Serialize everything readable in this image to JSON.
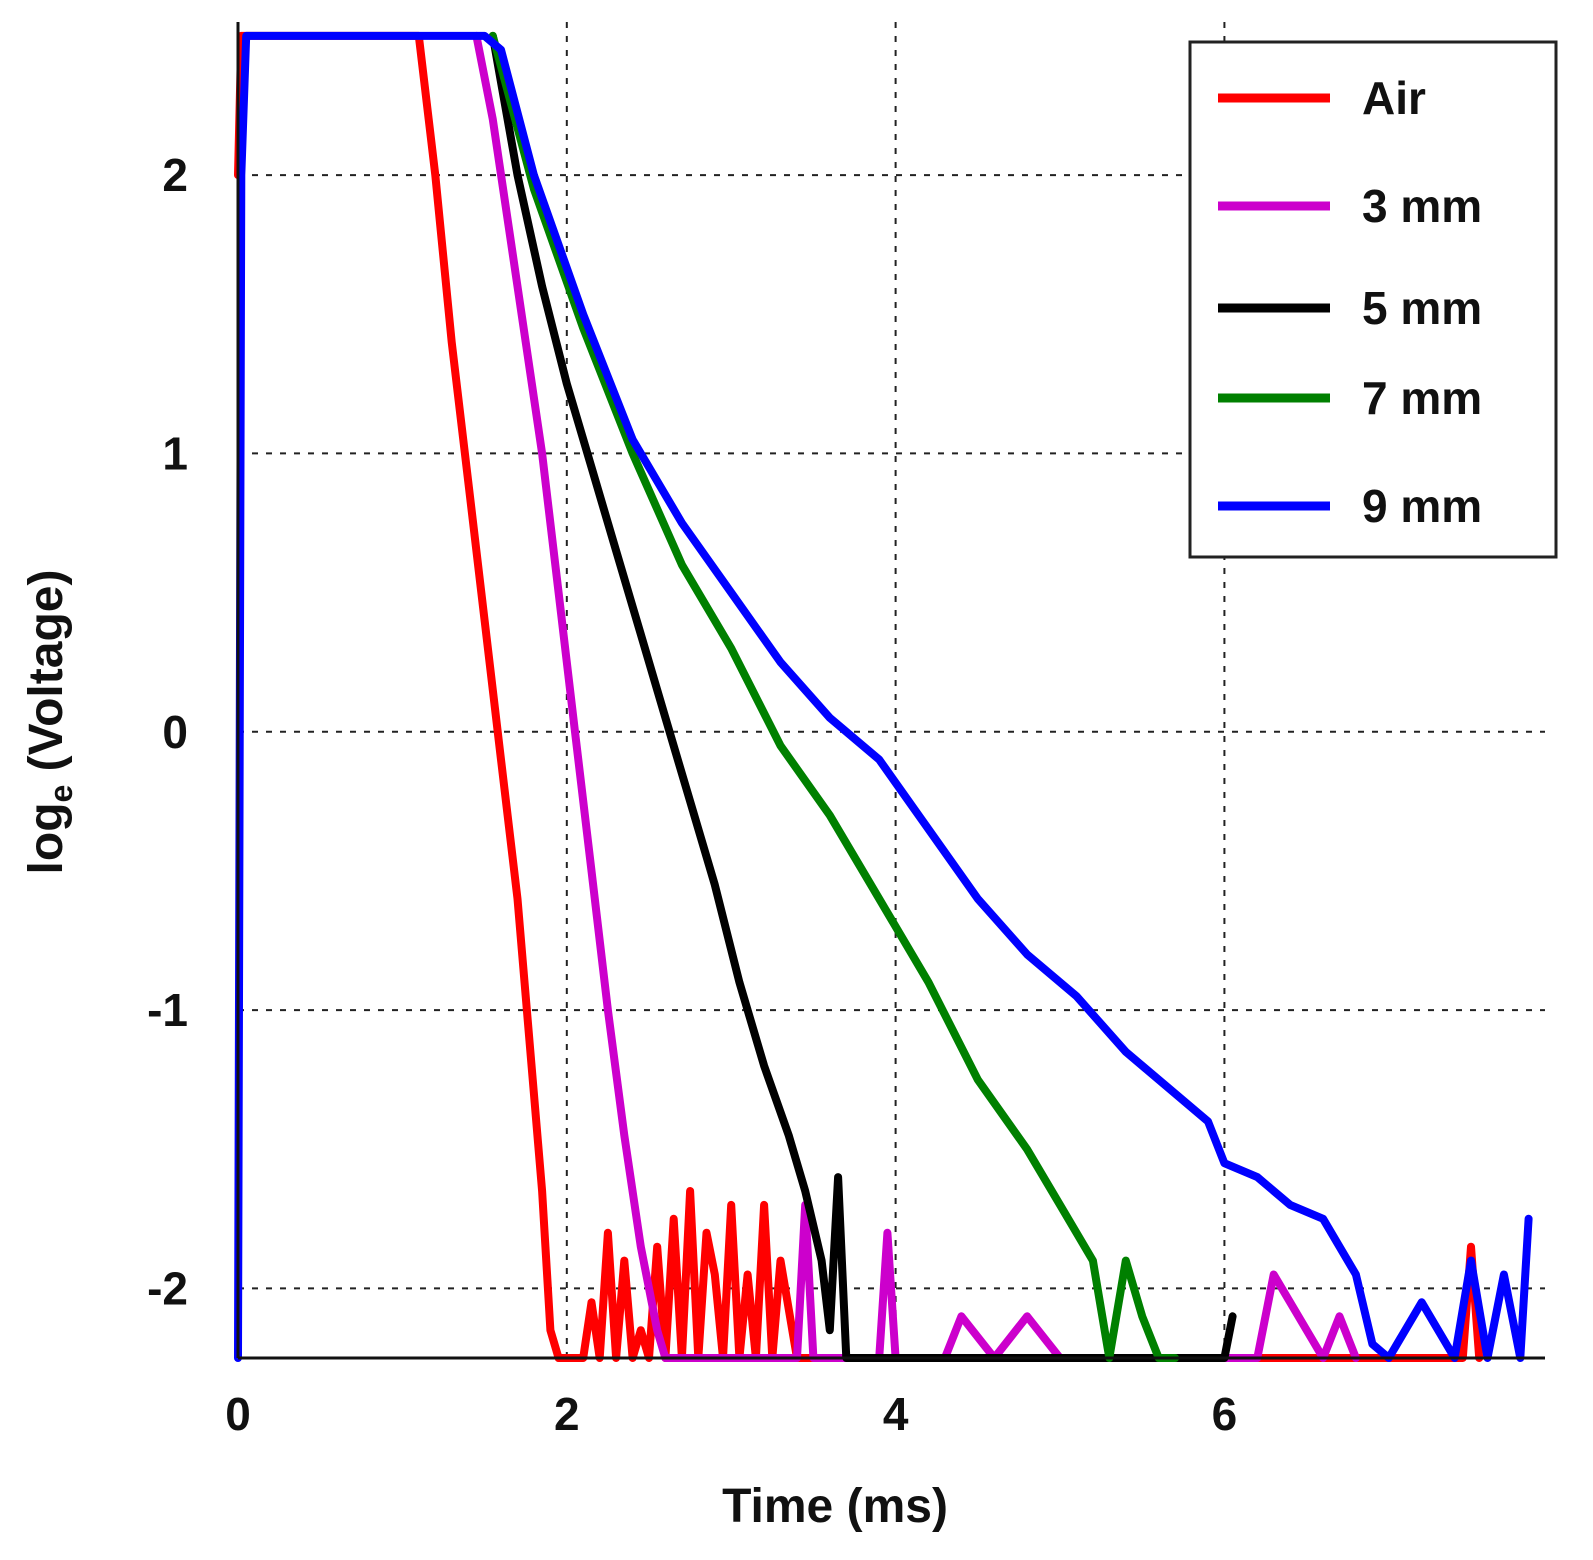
{
  "chart_data": {
    "type": "line",
    "title": "",
    "xlabel": "Time (ms)",
    "ylabel_main": "log",
    "ylabel_sub": "e",
    "ylabel_rest": " (Voltage)",
    "xlim": [
      0,
      7.95
    ],
    "ylim": [
      -2.25,
      2.55
    ],
    "xticks": [
      0,
      2,
      4,
      6
    ],
    "xtick_labels": [
      "0",
      "2",
      "4",
      "6"
    ],
    "yticks": [
      2,
      1,
      0,
      -1,
      -2
    ],
    "ytick_labels": [
      "2",
      "1",
      "0",
      "-1",
      "-2"
    ],
    "grid": true,
    "legend_position": "top-right",
    "series": [
      {
        "name": "Air",
        "color": "#ff0000",
        "x": [
          0,
          0.02,
          0.05,
          1.1,
          1.2,
          1.3,
          1.4,
          1.5,
          1.6,
          1.7,
          1.8,
          1.85,
          1.9,
          1.95,
          2.0,
          2.1,
          2.15,
          2.2,
          2.25,
          2.3,
          2.35,
          2.4,
          2.45,
          2.5,
          2.55,
          2.6,
          2.65,
          2.7,
          2.75,
          2.8,
          2.85,
          2.9,
          2.95,
          3.0,
          3.05,
          3.1,
          3.15,
          3.2,
          3.25,
          3.3,
          3.4,
          3.5,
          4.5,
          5.0,
          6.0,
          7.0,
          7.45,
          7.5,
          7.55
        ],
        "y": [
          2.0,
          2.5,
          2.5,
          2.5,
          2.0,
          1.4,
          0.9,
          0.4,
          -0.1,
          -0.6,
          -1.3,
          -1.65,
          -2.15,
          -2.25,
          -2.25,
          -2.25,
          -2.05,
          -2.25,
          -1.8,
          -2.25,
          -1.9,
          -2.25,
          -2.15,
          -2.25,
          -1.85,
          -2.25,
          -1.75,
          -2.25,
          -1.65,
          -2.25,
          -1.8,
          -1.95,
          -2.25,
          -1.7,
          -2.25,
          -1.95,
          -2.25,
          -1.7,
          -2.25,
          -1.9,
          -2.25,
          -2.25,
          -2.25,
          -2.25,
          -2.25,
          -2.25,
          -2.25,
          -1.85,
          -2.25
        ]
      },
      {
        "name": "3 mm",
        "color": "#cc00cc",
        "x": [
          1.45,
          1.55,
          1.65,
          1.75,
          1.85,
          1.95,
          2.05,
          2.15,
          2.25,
          2.35,
          2.45,
          2.55,
          2.6,
          2.7,
          3.4,
          3.45,
          3.5,
          3.6,
          3.9,
          3.95,
          4.0,
          4.1,
          4.3,
          4.4,
          4.6,
          4.8,
          5.0,
          5.2,
          5.8,
          6.2,
          6.3,
          6.6,
          6.7,
          6.8
        ],
        "y": [
          2.5,
          2.2,
          1.8,
          1.4,
          1.0,
          0.5,
          0.0,
          -0.5,
          -1.0,
          -1.45,
          -1.85,
          -2.15,
          -2.25,
          -2.25,
          -2.25,
          -1.7,
          -2.25,
          -2.25,
          -2.25,
          -1.8,
          -2.25,
          -2.25,
          -2.25,
          -2.1,
          -2.25,
          -2.1,
          -2.25,
          -2.25,
          -2.25,
          -2.25,
          -1.95,
          -2.25,
          -2.1,
          -2.25
        ]
      },
      {
        "name": "5 mm",
        "color": "#000000",
        "x": [
          1.55,
          1.7,
          1.85,
          2.0,
          2.15,
          2.3,
          2.45,
          2.6,
          2.75,
          2.9,
          3.05,
          3.2,
          3.35,
          3.45,
          3.55,
          3.6,
          3.65,
          3.7,
          3.75,
          3.8,
          3.9,
          6.0,
          6.05
        ],
        "y": [
          2.5,
          2.0,
          1.6,
          1.25,
          0.95,
          0.65,
          0.35,
          0.05,
          -0.25,
          -0.55,
          -0.9,
          -1.2,
          -1.45,
          -1.65,
          -1.9,
          -2.15,
          -1.6,
          -2.25,
          -2.25,
          -2.25,
          -2.25,
          -2.25,
          -2.1
        ]
      },
      {
        "name": "7 mm",
        "color": "#008000",
        "x": [
          1.55,
          1.8,
          2.1,
          2.4,
          2.7,
          3.0,
          3.3,
          3.6,
          3.9,
          4.2,
          4.5,
          4.8,
          5.0,
          5.2,
          5.3,
          5.4,
          5.5,
          5.6,
          5.7
        ],
        "y": [
          2.5,
          1.95,
          1.45,
          1.0,
          0.6,
          0.3,
          -0.05,
          -0.3,
          -0.6,
          -0.9,
          -1.25,
          -1.5,
          -1.7,
          -1.9,
          -2.25,
          -1.9,
          -2.1,
          -2.25,
          -2.25
        ]
      },
      {
        "name": "9 mm",
        "color": "#0000ff",
        "x": [
          0,
          0.02,
          0.05,
          1.5,
          1.6,
          1.8,
          2.1,
          2.4,
          2.7,
          3.0,
          3.3,
          3.6,
          3.9,
          4.2,
          4.5,
          4.8,
          5.1,
          5.4,
          5.7,
          5.9,
          6.0,
          6.2,
          6.4,
          6.6,
          6.8,
          6.9,
          7.0,
          7.2,
          7.4,
          7.5,
          7.6,
          7.7,
          7.8,
          7.85
        ],
        "y": [
          -2.25,
          2.0,
          2.5,
          2.5,
          2.45,
          2.0,
          1.5,
          1.05,
          0.75,
          0.5,
          0.25,
          0.05,
          -0.1,
          -0.35,
          -0.6,
          -0.8,
          -0.95,
          -1.15,
          -1.3,
          -1.4,
          -1.55,
          -1.6,
          -1.7,
          -1.75,
          -1.95,
          -2.2,
          -2.25,
          -2.05,
          -2.25,
          -1.9,
          -2.25,
          -1.95,
          -2.25,
          -1.75
        ]
      }
    ]
  }
}
